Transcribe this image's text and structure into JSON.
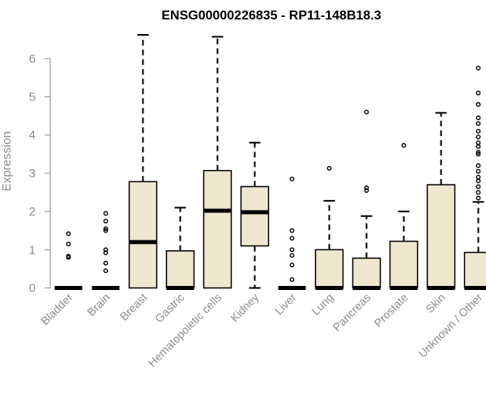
{
  "chart_data": {
    "type": "box",
    "title": "ENSG00000226835 - RP11-148B18.3",
    "xlabel": "",
    "ylabel": "Expression",
    "ylim": [
      0,
      6.6
    ],
    "yticks": [
      0,
      1,
      2,
      3,
      4,
      5,
      6
    ],
    "grid": false,
    "box_fill": "#efe7cf",
    "categories": [
      "Bladder",
      "Brain",
      "Breast",
      "Gastric",
      "Hematopoietic cells",
      "Kidney",
      "Liver",
      "Lung",
      "Pancreas",
      "Prostate",
      "Skin",
      "Unknown / Other"
    ],
    "boxes": [
      {
        "name": "Bladder",
        "min": 0,
        "q1": 0,
        "median": 0,
        "q3": 0,
        "max": 0,
        "outliers": [
          0.8,
          0.83,
          1.15,
          1.42
        ]
      },
      {
        "name": "Brain",
        "min": 0,
        "q1": 0,
        "median": 0,
        "q3": 0,
        "max": 0,
        "outliers": [
          0.45,
          0.65,
          0.92,
          1.0,
          1.5,
          1.55,
          1.75,
          1.95
        ]
      },
      {
        "name": "Breast",
        "min": 0,
        "q1": 0,
        "median": 1.2,
        "q3": 2.78,
        "max": 6.62,
        "outliers": []
      },
      {
        "name": "Gastric",
        "min": 0,
        "q1": 0,
        "median": 0,
        "q3": 0.97,
        "max": 2.1,
        "outliers": []
      },
      {
        "name": "Hematopoietic cells",
        "min": 0,
        "q1": 0,
        "median": 2.02,
        "q3": 3.07,
        "max": 6.57,
        "outliers": []
      },
      {
        "name": "Kidney",
        "min": 0,
        "q1": 1.1,
        "median": 1.98,
        "q3": 2.65,
        "max": 3.8,
        "outliers": []
      },
      {
        "name": "Liver",
        "min": 0,
        "q1": 0,
        "median": 0,
        "q3": 0,
        "max": 0,
        "outliers": [
          0.22,
          0.6,
          0.85,
          1.0,
          1.3,
          1.5,
          2.85
        ]
      },
      {
        "name": "Lung",
        "min": 0,
        "q1": 0,
        "median": 0,
        "q3": 1.0,
        "max": 2.28,
        "outliers": [
          3.13
        ]
      },
      {
        "name": "Pancreas",
        "min": 0,
        "q1": 0,
        "median": 0,
        "q3": 0.78,
        "max": 1.88,
        "outliers": [
          2.55,
          2.62,
          4.6
        ]
      },
      {
        "name": "Prostate",
        "min": 0,
        "q1": 0,
        "median": 0,
        "q3": 1.22,
        "max": 2.0,
        "outliers": [
          3.73
        ]
      },
      {
        "name": "Skin",
        "min": 0,
        "q1": 0,
        "median": 0,
        "q3": 2.7,
        "max": 4.58,
        "outliers": []
      },
      {
        "name": "Unknown / Other",
        "min": 0,
        "q1": 0,
        "median": 0,
        "q3": 0.93,
        "max": 2.25,
        "outliers": [
          2.35,
          2.5,
          2.65,
          2.8,
          2.9,
          3.05,
          3.2,
          3.5,
          3.55,
          3.7,
          3.8,
          3.95,
          4.1,
          4.3,
          4.45,
          4.8,
          5.1,
          5.75
        ]
      }
    ]
  }
}
